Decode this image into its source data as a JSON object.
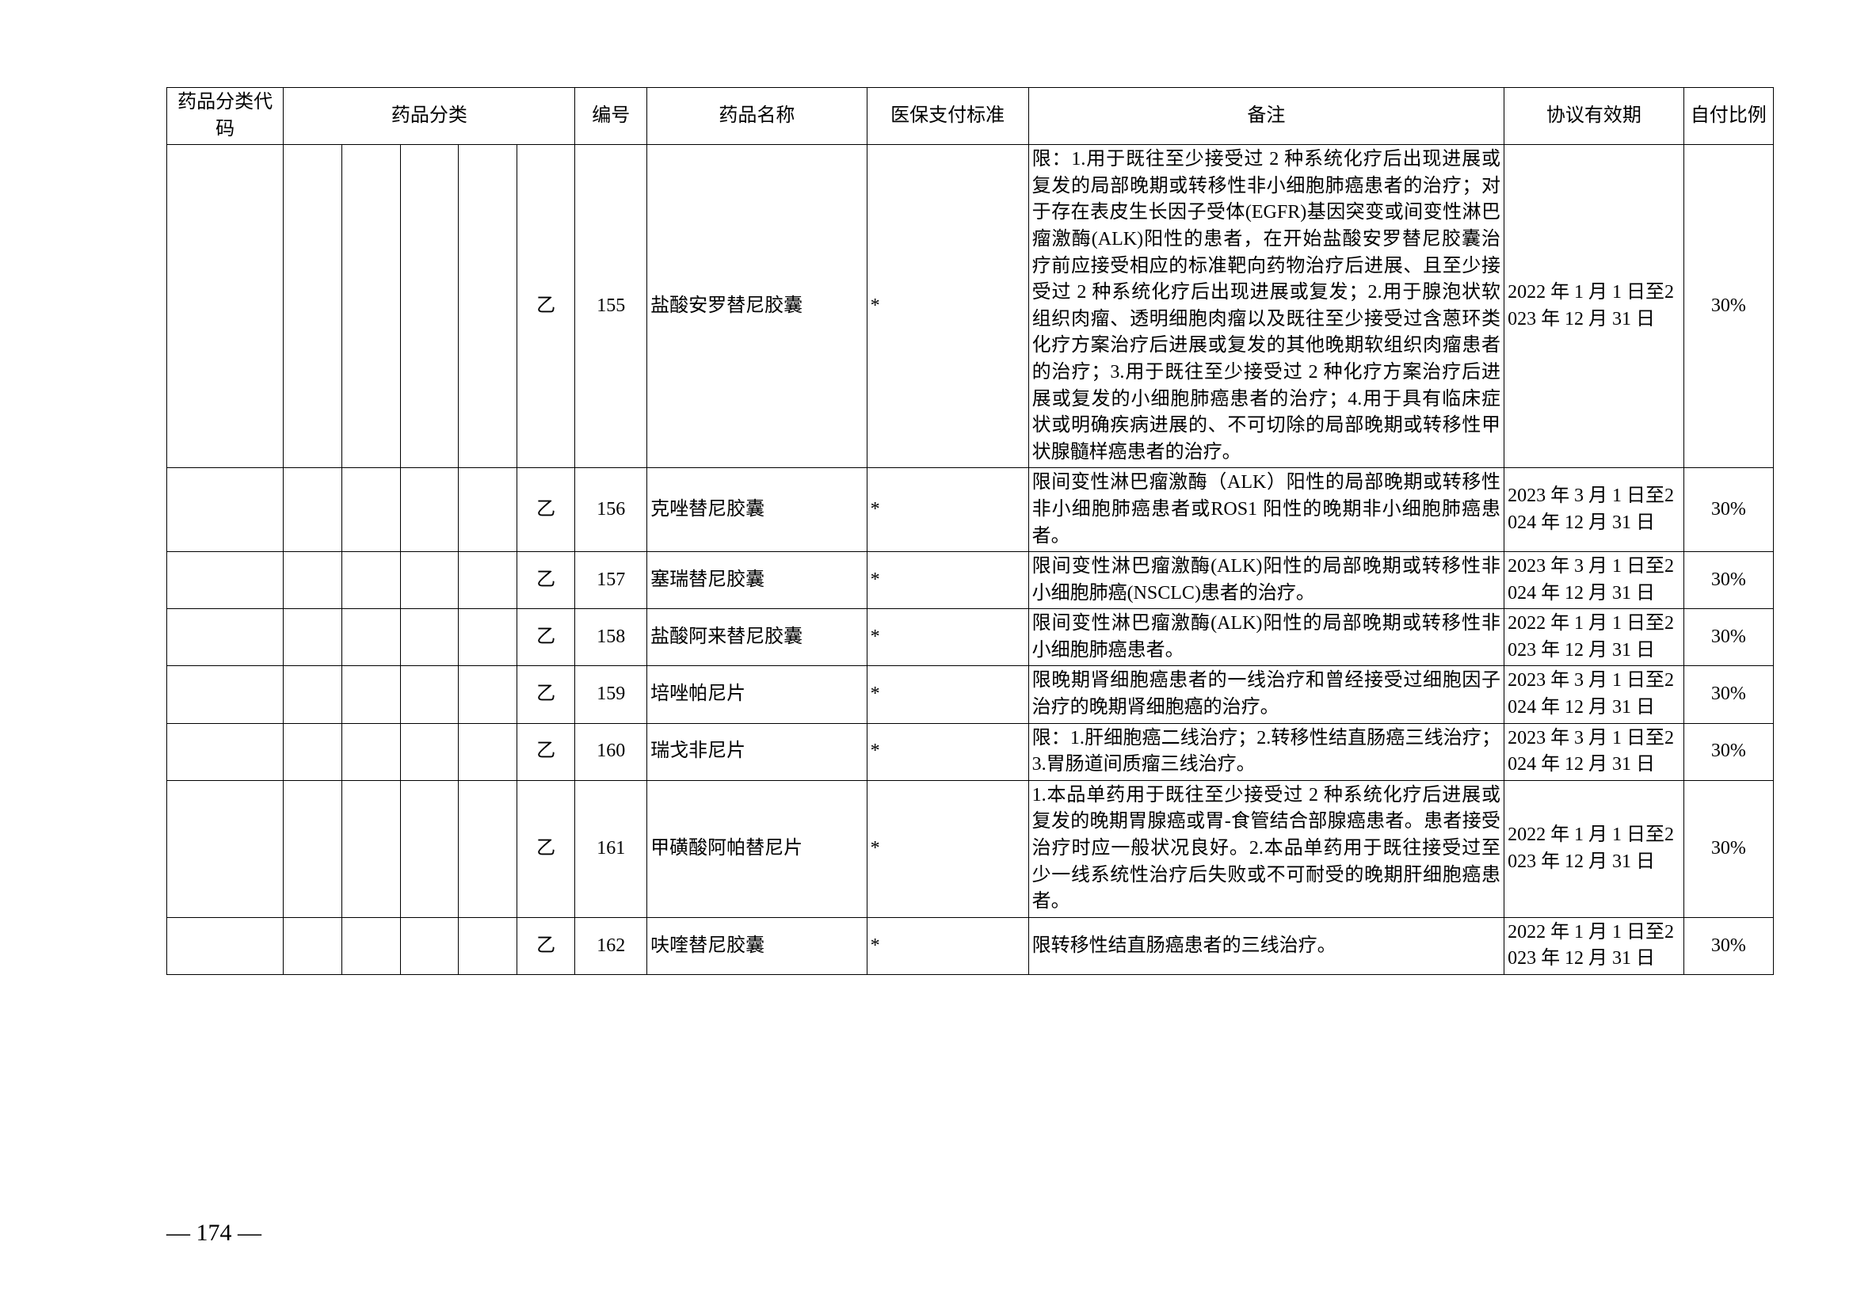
{
  "headers": {
    "code": "药品分类代码",
    "category": "药品分类",
    "no": "编号",
    "name": "药品名称",
    "pay": "医保支付标准",
    "note": "备注",
    "period": "协议有效期",
    "ratio": "自付比例"
  },
  "rows": [
    {
      "cat5": "乙",
      "no": "155",
      "name": "盐酸安罗替尼胶囊",
      "pay": "*",
      "note": "限：1.用于既往至少接受过 2 种系统化疗后出现进展或复发的局部晚期或转移性非小细胞肺癌患者的治疗；对于存在表皮生长因子受体(EGFR)基因突变或间变性淋巴瘤激酶(ALK)阳性的患者，在开始盐酸安罗替尼胶囊治疗前应接受相应的标准靶向药物治疗后进展、且至少接受过 2 种系统化疗后出现进展或复发；2.用于腺泡状软组织肉瘤、透明细胞肉瘤以及既往至少接受过含蒽环类化疗方案治疗后进展或复发的其他晚期软组织肉瘤患者的治疗；3.用于既往至少接受过 2 种化疗方案治疗后进展或复发的小细胞肺癌患者的治疗；4.用于具有临床症状或明确疾病进展的、不可切除的局部晚期或转移性甲状腺髓样癌患者的治疗。",
      "period": "2022 年 1 月 1 日至2023 年 12 月 31 日",
      "ratio": "30%"
    },
    {
      "cat5": "乙",
      "no": "156",
      "name": "克唑替尼胶囊",
      "pay": "*",
      "note": "限间变性淋巴瘤激酶（ALK）阳性的局部晚期或转移性非小细胞肺癌患者或ROS1 阳性的晚期非小细胞肺癌患者。",
      "period": "2023 年 3 月 1 日至2024 年 12 月 31 日",
      "ratio": "30%"
    },
    {
      "cat5": "乙",
      "no": "157",
      "name": "塞瑞替尼胶囊",
      "pay": "*",
      "note": "限间变性淋巴瘤激酶(ALK)阳性的局部晚期或转移性非小细胞肺癌(NSCLC)患者的治疗。",
      "period": "2023 年 3 月 1 日至2024 年 12 月 31 日",
      "ratio": "30%"
    },
    {
      "cat5": "乙",
      "no": "158",
      "name": "盐酸阿来替尼胶囊",
      "pay": "*",
      "note": "限间变性淋巴瘤激酶(ALK)阳性的局部晚期或转移性非小细胞肺癌患者。",
      "period": "2022 年 1 月 1 日至2023 年 12 月 31 日",
      "ratio": "30%"
    },
    {
      "cat5": "乙",
      "no": "159",
      "name": "培唑帕尼片",
      "pay": "*",
      "note": "限晚期肾细胞癌患者的一线治疗和曾经接受过细胞因子治疗的晚期肾细胞癌的治疗。",
      "period": "2023 年 3 月 1 日至2024 年 12 月 31 日",
      "ratio": "30%"
    },
    {
      "cat5": "乙",
      "no": "160",
      "name": "瑞戈非尼片",
      "pay": "*",
      "note": "限：1.肝细胞癌二线治疗；2.转移性结直肠癌三线治疗；3.胃肠道间质瘤三线治疗。",
      "period": "2023 年 3 月 1 日至2024 年 12 月 31 日",
      "ratio": "30%"
    },
    {
      "cat5": "乙",
      "no": "161",
      "name": "甲磺酸阿帕替尼片",
      "pay": "*",
      "note": "1.本品单药用于既往至少接受过 2 种系统化疗后进展或复发的晚期胃腺癌或胃-食管结合部腺癌患者。患者接受治疗时应一般状况良好。2.本品单药用于既往接受过至少一线系统性治疗后失败或不可耐受的晚期肝细胞癌患者。",
      "period": "2022 年 1 月 1 日至2023 年 12 月 31 日",
      "ratio": "30%"
    },
    {
      "cat5": "乙",
      "no": "162",
      "name": "呋喹替尼胶囊",
      "pay": "*",
      "note": "限转移性结直肠癌患者的三线治疗。",
      "period": "2022 年 1 月 1 日至2023 年 12 月 31 日",
      "ratio": "30%"
    }
  ],
  "pageNumber": "— 174 —",
  "style": {
    "font_size_pt": 24,
    "border_color": "#000000",
    "text_color": "#000000",
    "background": "#ffffff"
  }
}
